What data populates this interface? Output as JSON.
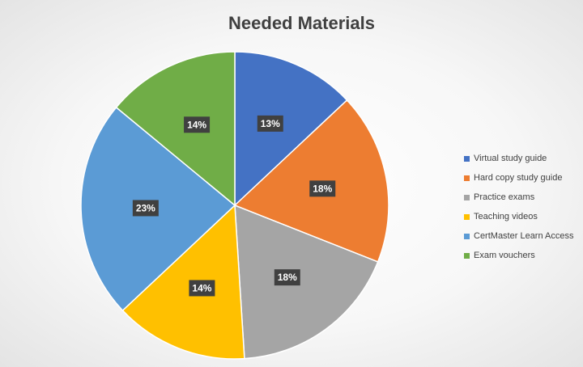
{
  "chart_data": {
    "type": "pie",
    "title": "Needed Materials",
    "labels": [
      "Virtual study guide",
      "Hard copy study guide",
      "Practice exams",
      "Teaching videos",
      "CertMaster Learn Access",
      "Exam vouchers"
    ],
    "values": [
      13,
      18,
      18,
      14,
      23,
      14
    ],
    "value_suffix": "%",
    "colors": [
      "#4472C4",
      "#ED7D31",
      "#A5A5A5",
      "#FFC000",
      "#5B9BD5",
      "#70AD47"
    ],
    "legend_position": "right",
    "data_labels": "inside"
  }
}
